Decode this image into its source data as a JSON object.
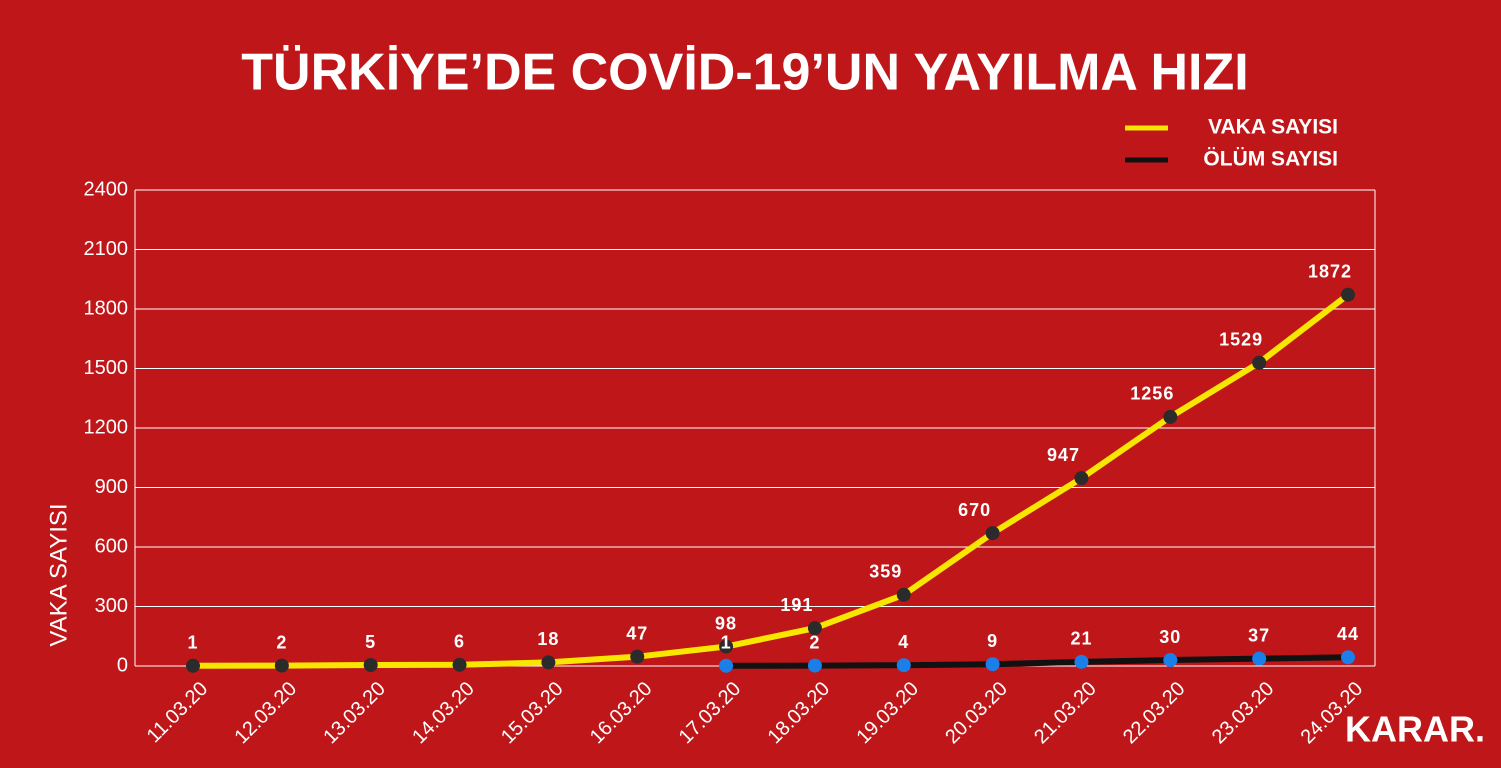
{
  "chart_data": {
    "type": "line",
    "title": "TÜRKİYE’DE COVİD-19’UN YAYILMA HIZI",
    "y_label": "VAKA SAYISI",
    "brand": "KARAR.",
    "categories": [
      "11.03.20",
      "12.03.20",
      "13.03.20",
      "14.03.20",
      "15.03.20",
      "16.03.20",
      "17.03.20",
      "18.03.20",
      "19.03.20",
      "20.03.20",
      "21.03.20",
      "22.03.20",
      "23.03.20",
      "24.03.20"
    ],
    "series": [
      {
        "name": "VAKA SAYISI",
        "color": "#f7e600",
        "marker_color": "#2b2b2b",
        "values": [
          1,
          2,
          5,
          6,
          18,
          47,
          98,
          191,
          359,
          670,
          947,
          1256,
          1529,
          1872
        ]
      },
      {
        "name": "ÖLÜM SAYISI",
        "color": "#111111",
        "marker_color": "#1a7fe8",
        "values": [
          null,
          null,
          null,
          null,
          null,
          null,
          1,
          2,
          4,
          9,
          21,
          30,
          37,
          44
        ]
      }
    ],
    "ylim": [
      0,
      2400
    ],
    "yticks": [
      0,
      300,
      600,
      900,
      1200,
      1500,
      1800,
      2100,
      2400
    ],
    "grid": true,
    "legend": "top-right"
  }
}
